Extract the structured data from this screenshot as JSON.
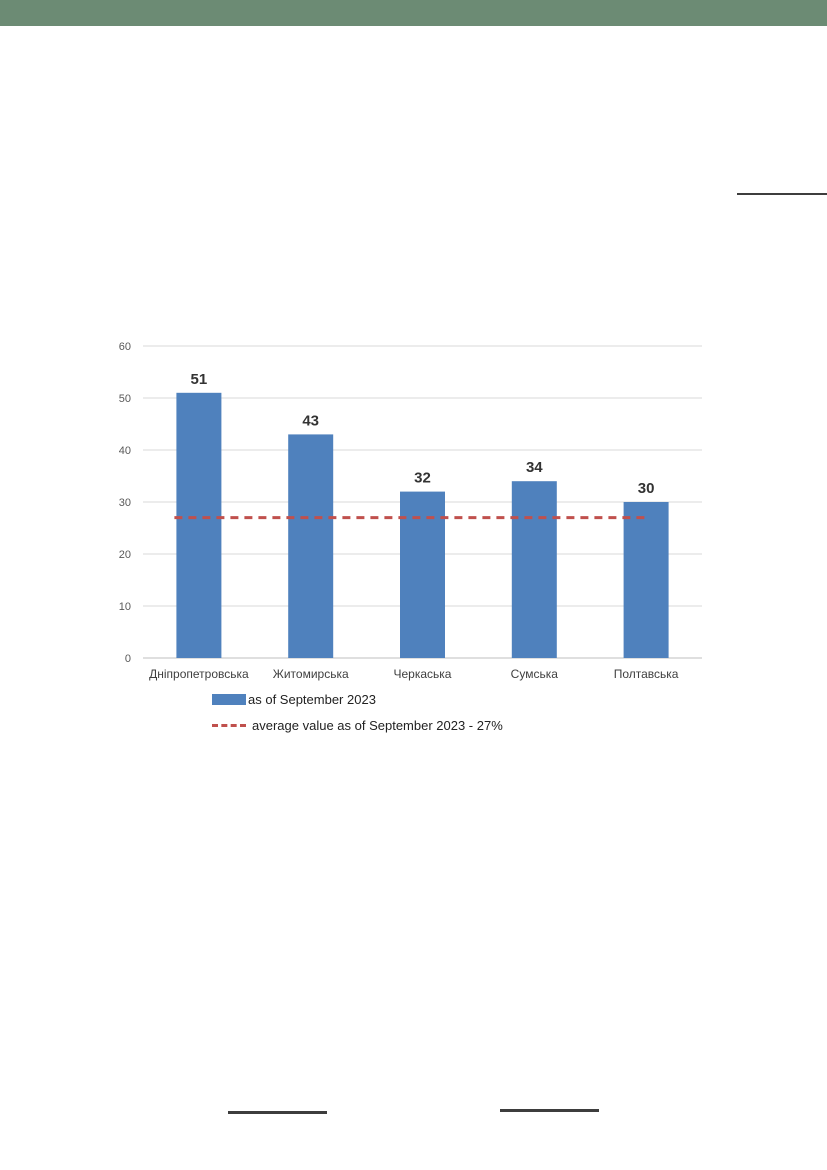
{
  "page": {
    "header_color": "#6c8b74",
    "rule_color": "#3d3d3d"
  },
  "chart_data": {
    "type": "bar",
    "categories": [
      "Дніпропетровська",
      "Житомирська",
      "Черкаська",
      "Сумська",
      "Полтавська"
    ],
    "series": [
      {
        "name": "as of September 2023",
        "values": [
          51,
          43,
          32,
          34,
          30
        ],
        "color": "#4f81bd"
      }
    ],
    "reference_line": {
      "name": "average value as of September 2023 - 27%",
      "value": 27,
      "color": "#c0504d",
      "style": "dashed"
    },
    "ylim": [
      0,
      60
    ],
    "yticks": [
      0,
      10,
      20,
      30,
      40,
      50,
      60
    ],
    "grid": true,
    "data_labels": true,
    "legend_position": "bottom"
  }
}
